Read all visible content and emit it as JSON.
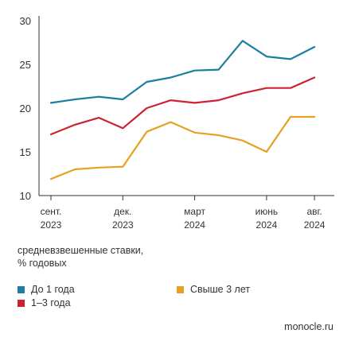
{
  "chart_data": {
    "type": "line",
    "x": [
      0,
      1,
      2,
      3,
      4,
      5,
      6,
      7,
      8,
      9,
      10,
      11,
      12
    ],
    "x_tick_labels": [
      {
        "index": 0,
        "line1": "сент.",
        "line2": "2023"
      },
      {
        "index": 3,
        "line1": "дек.",
        "line2": "2023"
      },
      {
        "index": 6,
        "line1": "март",
        "line2": "2024"
      },
      {
        "index": 9,
        "line1": "июнь",
        "line2": "2024"
      },
      {
        "index": 11,
        "line1": "авг.",
        "line2": "2024"
      }
    ],
    "ylim": [
      10,
      30
    ],
    "yticks": [
      10,
      15,
      20,
      25,
      30
    ],
    "grid": false,
    "series": [
      {
        "name": "До 1 года",
        "color": "#1a7fa0",
        "values": [
          20.6,
          21.0,
          21.3,
          21.0,
          23.0,
          23.5,
          24.3,
          24.4,
          27.7,
          25.9,
          25.6,
          27.0,
          null
        ]
      },
      {
        "name": "1–3 года",
        "color": "#cc2333",
        "values": [
          17.0,
          18.1,
          18.9,
          17.7,
          20.0,
          20.9,
          20.6,
          20.9,
          21.7,
          22.3,
          22.3,
          23.5,
          null
        ]
      },
      {
        "name": "Свыше 3 лет",
        "color": "#e8a020",
        "values": [
          11.9,
          13.0,
          13.2,
          13.3,
          17.3,
          18.4,
          17.2,
          16.9,
          16.3,
          15.0,
          19.0,
          19.0,
          null
        ]
      }
    ]
  },
  "axis_note": {
    "line1": "средневзвешенные ставки,",
    "line2": "% годовых"
  },
  "legend": {
    "items": [
      {
        "label": "До 1 года",
        "color": "#1a7fa0"
      },
      {
        "label": "1–3 года",
        "color": "#cc2333"
      },
      {
        "label": "Свыше 3 лет",
        "color": "#e8a020"
      }
    ]
  },
  "source": "monocle.ru"
}
